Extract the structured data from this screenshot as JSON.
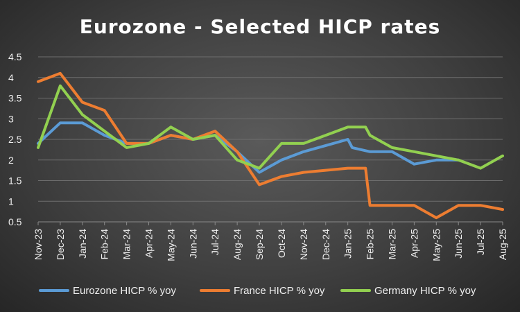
{
  "chart_data": {
    "type": "line",
    "title": "Eurozone - Selected HICP rates",
    "categories": [
      "Nov-23",
      "Dec-23",
      "Jan-24",
      "Feb-24",
      "Mar-24",
      "Apr-24",
      "May-24",
      "Jun-24",
      "Jul-24",
      "Aug-24",
      "Sep-24",
      "Oct-24",
      "Nov-24",
      "Dec-24",
      "Jan-25",
      "Feb-25",
      "Mar-25",
      "Apr-25",
      "May-25",
      "Jun-25",
      "Jul-25",
      "Aug-25"
    ],
    "ylim": [
      0.5,
      4.5
    ],
    "yticks": [
      "0.5",
      "1",
      "1.5",
      "2",
      "2.5",
      "3",
      "3.5",
      "4",
      "4.5"
    ],
    "grid": true,
    "legend_position": "bottom",
    "series": [
      {
        "name": "Eurozone HICP % yoy",
        "color": "#5b9bd5",
        "points": [
          [
            0,
            2.4
          ],
          [
            1,
            2.9
          ],
          [
            2,
            2.9
          ],
          [
            3,
            2.6
          ],
          [
            4,
            2.4
          ],
          [
            5,
            2.4
          ],
          [
            6,
            2.6
          ],
          [
            7,
            2.5
          ],
          [
            8,
            2.6
          ],
          [
            9,
            2.2
          ],
          [
            10,
            1.7
          ],
          [
            11,
            2.0
          ],
          [
            12,
            2.2
          ],
          [
            13,
            2.35
          ],
          [
            14,
            2.5
          ],
          [
            14.2,
            2.3
          ],
          [
            15,
            2.2
          ],
          [
            16,
            2.2
          ],
          [
            17,
            1.9
          ],
          [
            18,
            2.0
          ],
          [
            19,
            2.0
          ]
        ]
      },
      {
        "name": "France HICP % yoy",
        "color": "#ed7d31",
        "points": [
          [
            0,
            3.9
          ],
          [
            1,
            4.1
          ],
          [
            2,
            3.4
          ],
          [
            3,
            3.2
          ],
          [
            4,
            2.4
          ],
          [
            5,
            2.4
          ],
          [
            6,
            2.6
          ],
          [
            7,
            2.5
          ],
          [
            8,
            2.7
          ],
          [
            9,
            2.2
          ],
          [
            10,
            1.4
          ],
          [
            11,
            1.6
          ],
          [
            12,
            1.7
          ],
          [
            13,
            1.75
          ],
          [
            14,
            1.8
          ],
          [
            14.8,
            1.8
          ],
          [
            15,
            0.9
          ],
          [
            16,
            0.9
          ],
          [
            17,
            0.9
          ],
          [
            18,
            0.6
          ],
          [
            19,
            0.9
          ],
          [
            20,
            0.9
          ],
          [
            21,
            0.8
          ]
        ]
      },
      {
        "name": "Germany HICP % yoy",
        "color": "#92d050",
        "points": [
          [
            0,
            2.3
          ],
          [
            1,
            3.8
          ],
          [
            2,
            3.1
          ],
          [
            3,
            2.7
          ],
          [
            4,
            2.3
          ],
          [
            5,
            2.4
          ],
          [
            6,
            2.8
          ],
          [
            7,
            2.5
          ],
          [
            8,
            2.6
          ],
          [
            9,
            2.0
          ],
          [
            10,
            1.8
          ],
          [
            11,
            2.4
          ],
          [
            12,
            2.4
          ],
          [
            13,
            2.6
          ],
          [
            14,
            2.8
          ],
          [
            14.8,
            2.8
          ],
          [
            15,
            2.6
          ],
          [
            16,
            2.3
          ],
          [
            17,
            2.2
          ],
          [
            18,
            2.1
          ],
          [
            19,
            2.0
          ],
          [
            20,
            1.8
          ],
          [
            21,
            2.1
          ]
        ]
      }
    ]
  }
}
